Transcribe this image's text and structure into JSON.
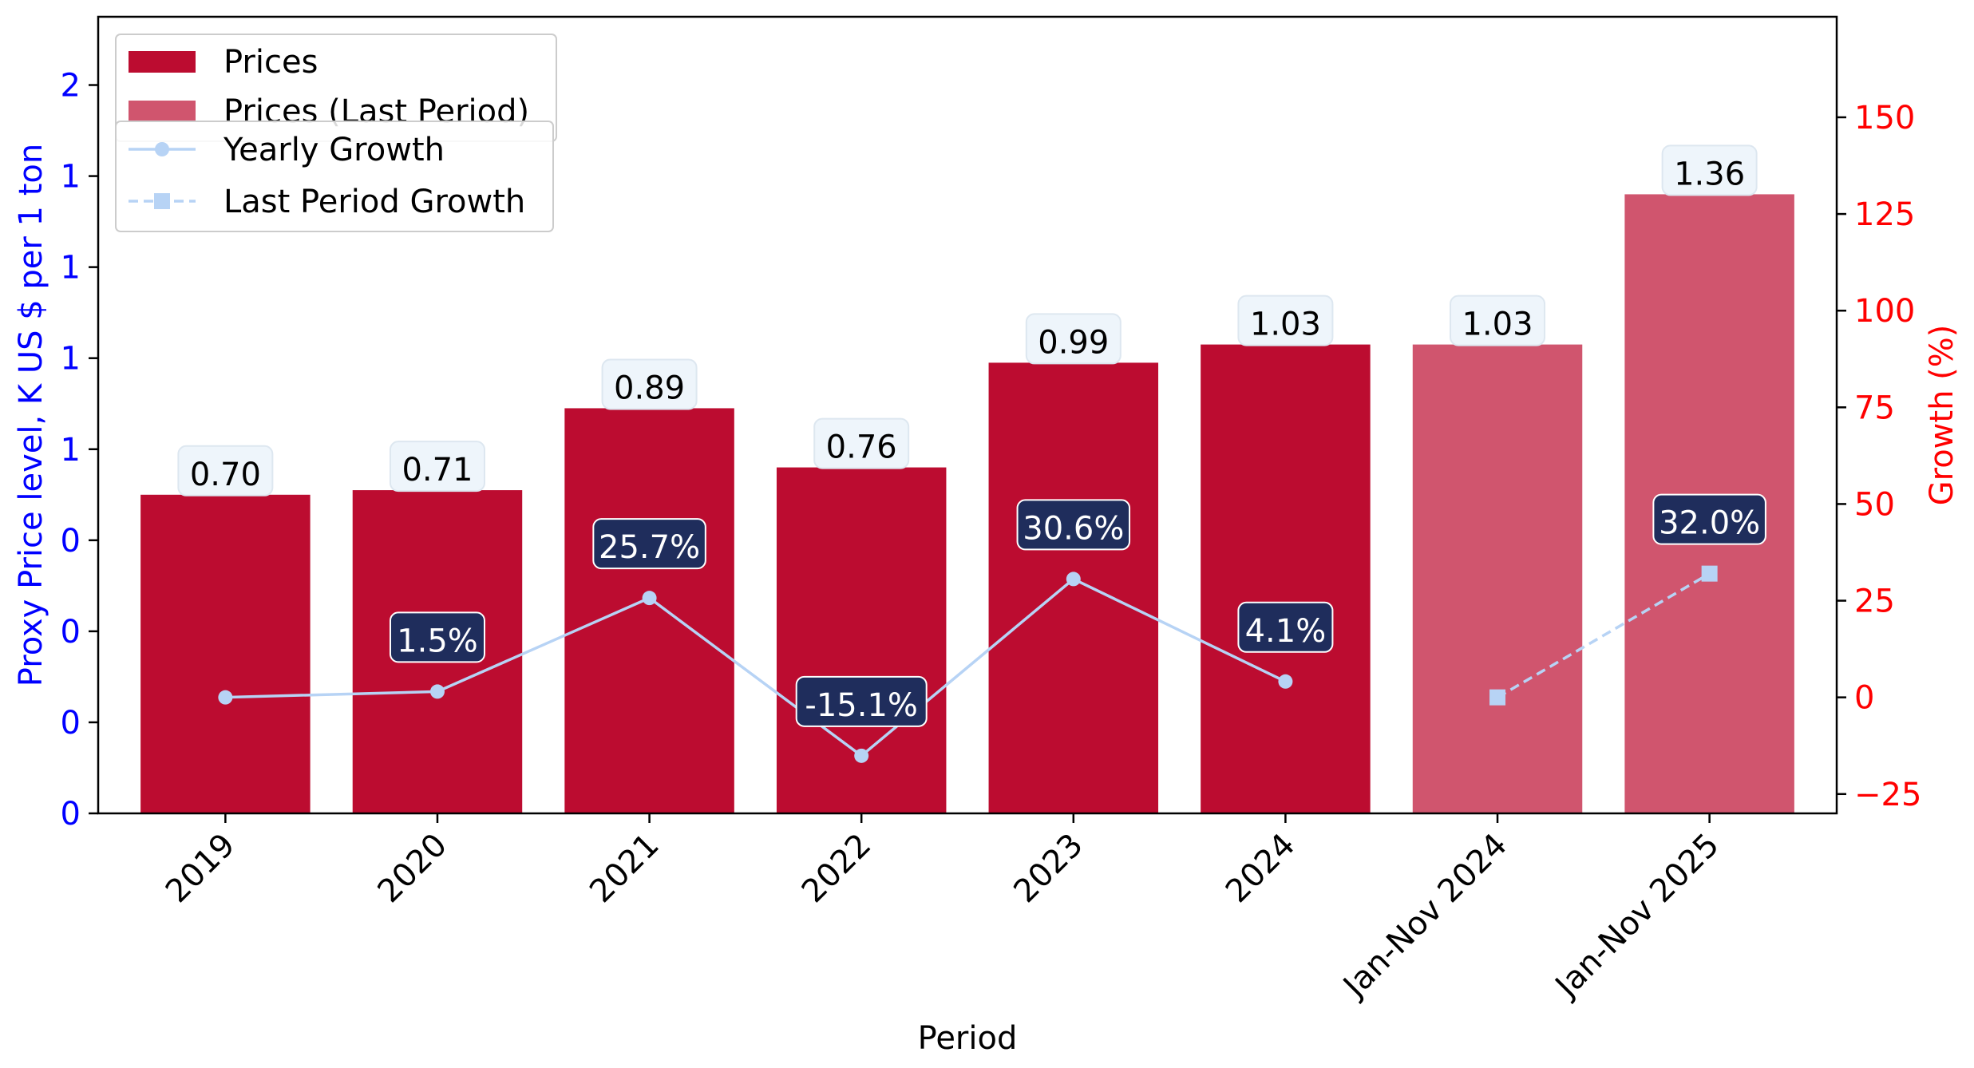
{
  "chart_data": {
    "type": "bar",
    "categories": [
      "2019",
      "2020",
      "2021",
      "2022",
      "2023",
      "2024",
      "Jan-Nov 2024",
      "Jan-Nov 2025"
    ],
    "xlabel": "Period",
    "ylabel_left": "Proxy Price level, K US $ per 1 ton",
    "ylabel_right": "Growth (%)",
    "left_ylim": [
      0,
      1.75
    ],
    "left_ticks": [
      0,
      0.2,
      0.4,
      0.6,
      0.8,
      1.0,
      1.2,
      1.4,
      1.6
    ],
    "left_tick_labels": [
      "0",
      "0",
      "0",
      "0",
      "1",
      "1",
      "1",
      "1",
      "2"
    ],
    "right_ylim": [
      -30,
      176
    ],
    "right_ticks": [
      -25,
      0,
      25,
      50,
      75,
      100,
      125,
      150
    ],
    "right_tick_labels": [
      "−25",
      "0",
      "25",
      "50",
      "75",
      "100",
      "125",
      "150"
    ],
    "series": [
      {
        "name": "Prices",
        "kind": "bar",
        "color": "#bc0c30",
        "values": [
          0.7,
          0.71,
          0.89,
          0.76,
          0.99,
          1.03,
          null,
          null
        ],
        "labels": [
          "0.70",
          "0.71",
          "0.89",
          "0.76",
          "0.99",
          "1.03",
          "",
          ""
        ]
      },
      {
        "name": "Prices (Last Period)",
        "kind": "bar",
        "color": "#d0556e",
        "values": [
          null,
          null,
          null,
          null,
          null,
          null,
          1.03,
          1.36
        ],
        "labels": [
          "",
          "",
          "",
          "",
          "",
          "",
          "1.03",
          "1.36"
        ]
      },
      {
        "name": "Yearly Growth",
        "kind": "line",
        "color": "#b7d3f5",
        "values": [
          0,
          1.5,
          25.7,
          -15.1,
          30.6,
          4.1,
          null,
          null
        ],
        "labels": [
          "",
          "1.5%",
          "25.7%",
          "-15.1%",
          "30.6%",
          "4.1%",
          "",
          ""
        ]
      },
      {
        "name": "Last Period Growth",
        "kind": "line-dashed",
        "color": "#b7d3f5",
        "values": [
          null,
          null,
          null,
          null,
          null,
          null,
          0,
          32.0
        ],
        "labels": [
          "",
          "",
          "",
          "",
          "",
          "",
          "",
          "32.0%"
        ]
      }
    ],
    "colors": {
      "left_axis": "#0000ff",
      "right_axis": "#ff0000",
      "label_box": "#eef5fb",
      "growth_box": "#1f2d5c"
    }
  }
}
